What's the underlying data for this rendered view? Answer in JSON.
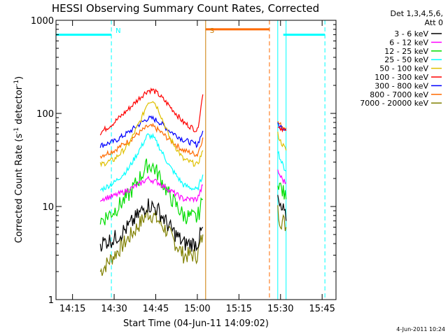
{
  "chart_data": {
    "type": "line",
    "title": "HESSI Observing Summary Count Rates, Corrected",
    "xlabel": "Start Time (04-Jun-11 14:09:02)",
    "ylabel": "Corrected Count Rate (s⁻¹ detector⁻¹)",
    "ylabel_main": "Corrected Count Rate (s",
    "ylabel_mid": " detector",
    "ylabel_end": ")",
    "ylabel_sup": "-1",
    "yscale": "log",
    "xlim": [
      "14:09:02",
      "15:50:00"
    ],
    "ylim": [
      1,
      1000
    ],
    "grid": false,
    "legend_position": "right",
    "x_ticks": [
      "14:15",
      "14:30",
      "14:45",
      "15:00",
      "15:15",
      "15:30",
      "15:45"
    ],
    "y_ticks": [
      "1",
      "10",
      "100",
      "1000"
    ],
    "legend_header": [
      "Det 1,3,4,5,6,",
      "Att 0"
    ],
    "timestamp": "4-Jun-2011 10:24",
    "attenuator_levels": [
      {
        "name": "",
        "color": "#00ffff",
        "start": "14:09:02",
        "end": "14:29",
        "value": 700
      },
      {
        "name": "",
        "color": "#00ffff",
        "start": "15:31",
        "end": "15:46",
        "value": 700
      },
      {
        "name": "",
        "color": "#ff6a00",
        "start": "15:03",
        "end": "15:26",
        "value": 800
      }
    ],
    "markers": [
      {
        "label": "N",
        "color": "#00ffff",
        "time": "14:29",
        "style": "dashed"
      },
      {
        "label": "S",
        "color": "#cc7a00",
        "time": "15:03",
        "style": "solid"
      },
      {
        "label": "",
        "color": "#ff6a00",
        "time": "15:26",
        "style": "dashed"
      },
      {
        "label": "",
        "color": "#00ffff",
        "time": "15:29",
        "style": "solid"
      },
      {
        "label": "",
        "color": "#00ffff",
        "time": "15:32",
        "style": "solid"
      },
      {
        "label": "",
        "color": "#00ffff",
        "time": "15:46",
        "style": "dashed"
      },
      {
        "label": "",
        "color": "#00ffff",
        "time": "14:09:02",
        "style": "solid"
      }
    ],
    "data_gaps": [
      {
        "start": "14:09:02",
        "end": "14:25"
      },
      {
        "start": "15:03",
        "end": "15:29"
      },
      {
        "start": "15:32",
        "end": "15:50"
      }
    ],
    "series": [
      {
        "name": "3 - 6 keV",
        "color": "#000000",
        "x": [
          "14:25",
          "14:30",
          "14:35",
          "14:40",
          "14:42",
          "14:44",
          "14:46",
          "14:50",
          "14:55",
          "15:00",
          "15:02"
        ],
        "values": [
          4,
          4.5,
          6,
          9,
          10.5,
          10,
          9,
          6,
          4,
          4,
          6
        ],
        "x2": [
          "15:29",
          "15:30",
          "15:31",
          "15:32"
        ],
        "values2": [
          12,
          9,
          9,
          7
        ]
      },
      {
        "name": "6 - 12 keV",
        "color": "#ff00ff",
        "x": [
          "14:25",
          "14:30",
          "14:35",
          "14:40",
          "14:42",
          "14:44",
          "14:46",
          "14:50",
          "14:55",
          "15:00",
          "15:02"
        ],
        "values": [
          12,
          13,
          15,
          18,
          20,
          19,
          18,
          15,
          12,
          12,
          17
        ],
        "x2": [
          "15:29",
          "15:30",
          "15:31",
          "15:32"
        ],
        "values2": [
          24,
          21,
          19,
          18
        ]
      },
      {
        "name": "12 - 25 keV",
        "color": "#00dd00",
        "x": [
          "14:25",
          "14:30",
          "14:35",
          "14:40",
          "14:42",
          "14:44",
          "14:46",
          "14:50",
          "14:55",
          "15:00",
          "15:02"
        ],
        "values": [
          7,
          9,
          13,
          22,
          28,
          27,
          22,
          13,
          8,
          7.5,
          12
        ],
        "x2": [
          "15:29",
          "15:30",
          "15:31",
          "15:32"
        ],
        "values2": [
          20,
          16,
          14,
          12
        ]
      },
      {
        "name": "25 - 50 keV",
        "color": "#00ffff",
        "x": [
          "14:25",
          "14:30",
          "14:35",
          "14:40",
          "14:42",
          "14:44",
          "14:46",
          "14:50",
          "14:55",
          "15:00",
          "15:02"
        ],
        "values": [
          15,
          18,
          25,
          45,
          58,
          56,
          45,
          27,
          17,
          15,
          22
        ],
        "x2": [
          "15:29",
          "15:30",
          "15:31",
          "15:32"
        ],
        "values2": [
          40,
          32,
          27,
          24
        ]
      },
      {
        "name": "50 - 100 keV",
        "color": "#e0c000",
        "x": [
          "14:25",
          "14:30",
          "14:35",
          "14:40",
          "14:42",
          "14:44",
          "14:46",
          "14:50",
          "14:55",
          "15:00",
          "15:02"
        ],
        "values": [
          28,
          32,
          45,
          90,
          130,
          140,
          110,
          55,
          32,
          28,
          40
        ],
        "x2": [
          "15:29",
          "15:30",
          "15:31",
          "15:32"
        ],
        "values2": [
          60,
          50,
          45,
          40
        ]
      },
      {
        "name": "100 - 300 keV",
        "color": "#ff0000",
        "x": [
          "14:25",
          "14:30",
          "14:35",
          "14:40",
          "14:42",
          "14:44",
          "14:46",
          "14:50",
          "14:55",
          "15:00",
          "15:02"
        ],
        "values": [
          62,
          80,
          110,
          155,
          175,
          178,
          160,
          120,
          80,
          65,
          160
        ],
        "x2": [
          "15:29",
          "15:30",
          "15:31",
          "15:32"
        ],
        "values2": [
          75,
          70,
          68,
          65
        ]
      },
      {
        "name": "300 - 800 keV",
        "color": "#0000ff",
        "x": [
          "14:25",
          "14:30",
          "14:35",
          "14:40",
          "14:42",
          "14:44",
          "14:46",
          "14:50",
          "14:55",
          "15:00",
          "15:02"
        ],
        "values": [
          45,
          50,
          62,
          80,
          88,
          88,
          82,
          65,
          52,
          46,
          65
        ],
        "x2": [
          "15:29",
          "15:30",
          "15:31",
          "15:32"
        ],
        "values2": [
          75,
          72,
          70,
          68
        ]
      },
      {
        "name": "800 - 7000 keV",
        "color": "#ff6a00",
        "x": [
          "14:25",
          "14:30",
          "14:35",
          "14:40",
          "14:42",
          "14:44",
          "14:46",
          "14:50",
          "14:55",
          "15:00",
          "15:02"
        ],
        "values": [
          35,
          40,
          50,
          65,
          72,
          72,
          66,
          52,
          40,
          36,
          55
        ],
        "x2": [
          "15:29",
          "15:30",
          "15:31",
          "15:32"
        ],
        "values2": [
          80,
          75,
          72,
          70
        ]
      },
      {
        "name": "7000 - 20000 keV",
        "color": "#808000",
        "x": [
          "14:25",
          "14:30",
          "14:35",
          "14:40",
          "14:42",
          "14:44",
          "14:46",
          "14:50",
          "14:55",
          "15:00",
          "15:02"
        ],
        "values": [
          2,
          3,
          4.5,
          7,
          8.5,
          8,
          7,
          5,
          3,
          3,
          5
        ],
        "x2": [
          "15:29",
          "15:30",
          "15:31",
          "15:32"
        ],
        "values2": [
          9,
          7,
          7,
          6
        ]
      }
    ]
  }
}
